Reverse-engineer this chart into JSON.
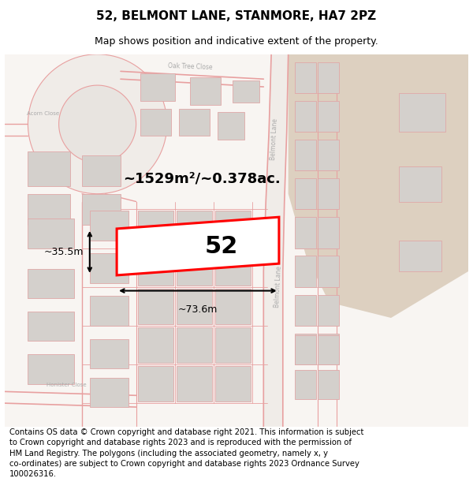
{
  "title": "52, BELMONT LANE, STANMORE, HA7 2PZ",
  "subtitle": "Map shows position and indicative extent of the property.",
  "footer": "Contains OS data © Crown copyright and database right 2021. This information is subject to Crown copyright and database rights 2023 and is reproduced with the permission of HM Land Registry. The polygons (including the associated geometry, namely x, y co-ordinates) are subject to Crown copyright and database rights 2023 Ordnance Survey 100026316.",
  "area_text": "~1529m²/~0.378ac.",
  "width_text": "~73.6m",
  "height_text": "~35.5m",
  "number_text": "52",
  "map_bg": "#f7f4f0",
  "road_color": "#e8a0a0",
  "highlight_color": "#ff0000",
  "block_color": "#d4d0cc",
  "block_edge": "#e0a8a8",
  "beige_area": "#ddd0c0",
  "title_fontsize": 11,
  "subtitle_fontsize": 9,
  "footer_fontsize": 7.2,
  "label_color": "#aaaaaa"
}
